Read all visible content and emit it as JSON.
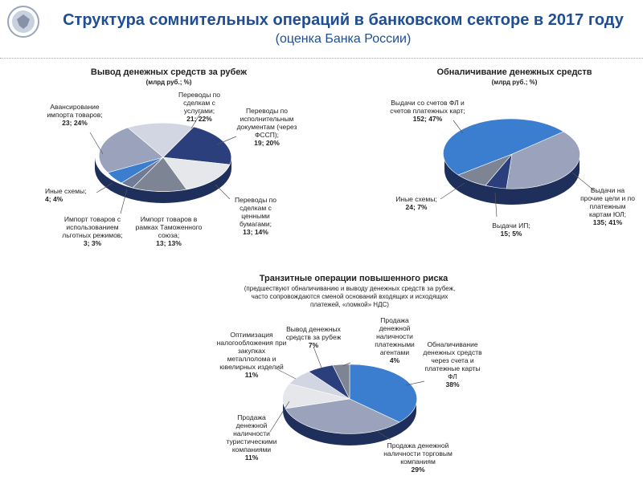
{
  "header": {
    "title": "Структура сомнительных операций в банковском секторе в 2017 году",
    "subtitle": "(оценка Банка России)"
  },
  "chart_data": [
    {
      "type": "pie",
      "title": "Вывод денежных средств за рубеж",
      "unit": "(млрд руб.; %)",
      "slices": [
        {
          "label": "Переводы по сделкам с услугами;",
          "value": 21,
          "pct": "22%",
          "color": "#d2d6e2"
        },
        {
          "label": "Переводы по исполнительным документам (через ФССП);",
          "value": 19,
          "pct": "20%",
          "color": "#2b3f7c"
        },
        {
          "label": "Переводы по сделкам с ценными бумагами;",
          "value": 13,
          "pct": "14%",
          "color": "#e6e7eb"
        },
        {
          "label": "Импорт товаров в рамках Таможенного союза;",
          "value": 13,
          "pct": "13%",
          "color": "#7d8594"
        },
        {
          "label": "Импорт товаров с использованием льготных режимов;",
          "value": 3,
          "pct": "3%",
          "color": "#6f7b97"
        },
        {
          "label": "Иные схемы;",
          "value": 4,
          "pct": "4%",
          "color": "#3b7ecf"
        },
        {
          "label": "Авансирование импорта товаров;",
          "value": 23,
          "pct": "24%",
          "color": "#9aa3bb"
        }
      ]
    },
    {
      "type": "pie",
      "title": "Обналичивание денежных средств",
      "unit": "(млрд руб.; %)",
      "slices": [
        {
          "label": "Выдачи на прочие цели и по платежным картам ЮЛ;",
          "value": 135,
          "pct": "41%",
          "color": "#9aa3bb"
        },
        {
          "label": "Выдачи ИП;",
          "value": 15,
          "pct": "5%",
          "color": "#2b3f7c"
        },
        {
          "label": "Иные схемы;",
          "value": 24,
          "pct": "7%",
          "color": "#7d8594"
        },
        {
          "label": "Выдачи со счетов ФЛ и счетов платежных карт;",
          "value": 152,
          "pct": "47%",
          "color": "#3b7ecf"
        }
      ]
    },
    {
      "type": "pie",
      "title": "Транзитные операции повышенного риска",
      "note": "(предшествуют обналичиванию и выводу денежных средств за рубеж, часто сопровождаются сменой оснований входящих и исходящих платежей, «ломкой» НДС)",
      "slices": [
        {
          "label": "Обналичивание денежных средств через счета и платежные карты ФЛ",
          "pct": "38%",
          "value": 38,
          "color": "#3b7ecf"
        },
        {
          "label": "Продажа денежной наличности торговым компаниям",
          "pct": "29%",
          "value": 29,
          "color": "#9aa3bb"
        },
        {
          "label": "Продажа денежной наличности туристическими компаниями",
          "pct": "11%",
          "value": 11,
          "color": "#e6e7eb"
        },
        {
          "label": "Оптимизация налогообложения при закупках металлолома и ювелирных изделий",
          "pct": "11%",
          "value": 11,
          "color": "#d2d6e2"
        },
        {
          "label": "Вывод денежных средств за рубеж",
          "pct": "7%",
          "value": 7,
          "color": "#2b3f7c"
        },
        {
          "label": "Продажа денежной наличности платежными агентами",
          "pct": "4%",
          "value": 4,
          "color": "#7d8594"
        }
      ]
    }
  ]
}
